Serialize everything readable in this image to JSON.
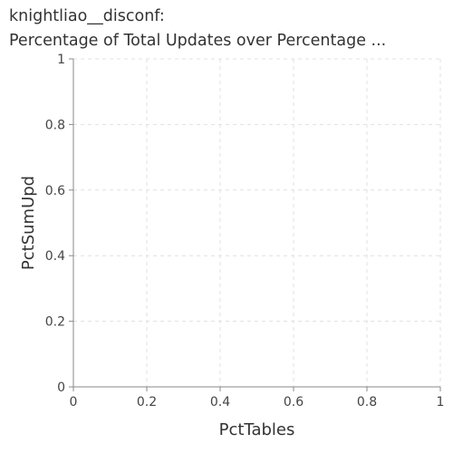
{
  "chart_data": {
    "type": "line",
    "title": "knightliao__disconf:",
    "subtitle": "Percentage of Total Updates over Percentage ...",
    "xlabel": "PctTables",
    "ylabel": "PctSumUpd",
    "xlim": [
      0,
      1
    ],
    "ylim": [
      0,
      1
    ],
    "x_ticks": [
      "0",
      "0.2",
      "0.4",
      "0.6",
      "0.8",
      "1"
    ],
    "y_ticks": [
      "0",
      "0.2",
      "0.4",
      "0.6",
      "0.8",
      "1"
    ],
    "grid": true,
    "grid_style": "dashed",
    "series": [],
    "colors": {
      "grid": "#e0e0e0",
      "axis": "#888888",
      "text": "#333333"
    }
  }
}
